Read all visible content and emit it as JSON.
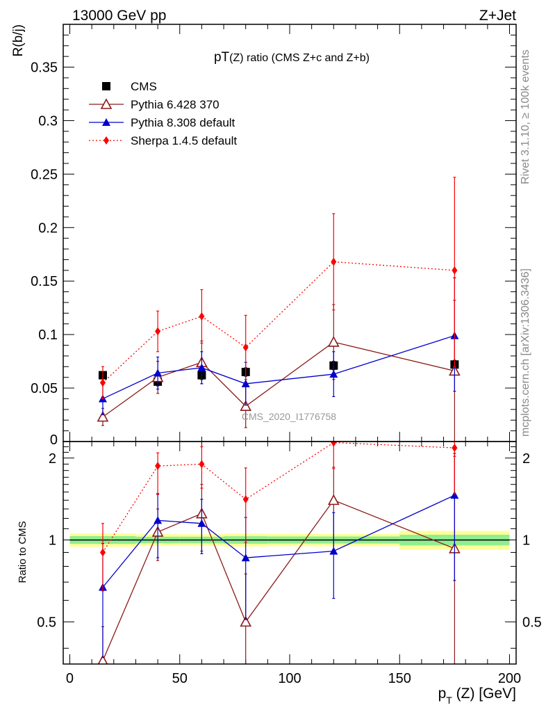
{
  "header": {
    "left_label": "13000 GeV pp",
    "right_label": "Z+Jet",
    "side_label_top": "Rivet 3.1.10, ≥ 100k events",
    "side_label_bottom": "mcplots.cern.ch [arXiv:1306.3436]",
    "watermark": "CMS_2020_I1776758"
  },
  "chart_data": [
    {
      "type": "scatter",
      "title_main": "pT",
      "title_sub": "(Z) ratio (CMS  Z+c and Z+b)",
      "ylabel": "R(b/j)",
      "xlim": [
        -3,
        203
      ],
      "ylim": [
        0,
        0.39
      ],
      "yticks": [
        0.05,
        0.1,
        0.15,
        0.2,
        0.25,
        0.3,
        0.35
      ],
      "ytick_labels": [
        "0.05",
        "0.1",
        "0.15",
        "0.2",
        "0.25",
        "0.3",
        "0.35"
      ],
      "ytick_zero_label": "0",
      "legend_position": "top-left",
      "x": [
        15,
        40,
        60,
        80,
        120,
        175
      ],
      "series": [
        {
          "name": "CMS",
          "color": "#000000",
          "marker": "square",
          "line": "none",
          "values": [
            0.062,
            0.056,
            0.062,
            0.065,
            0.071,
            0.072
          ],
          "err_lo": [
            0.003,
            0.004,
            0.004,
            0.004,
            0.004,
            0.004
          ],
          "err_hi": [
            0.003,
            0.004,
            0.004,
            0.004,
            0.004,
            0.004
          ]
        },
        {
          "name": "Pythia 6.428 370",
          "color": "#8b1a1a",
          "marker": "open-triangle",
          "line": "solid",
          "values": [
            0.023,
            0.06,
            0.074,
            0.033,
            0.093,
            0.066
          ],
          "err_lo": [
            0.008,
            0.015,
            0.02,
            0.02,
            0.035,
            0.066
          ],
          "err_hi": [
            0.008,
            0.015,
            0.02,
            0.02,
            0.035,
            0.066
          ]
        },
        {
          "name": "Pythia 8.308 default",
          "color": "#0000cc",
          "marker": "filled-triangle",
          "line": "solid",
          "values": [
            0.04,
            0.064,
            0.069,
            0.054,
            0.063,
            0.099
          ],
          "err_lo": [
            0.015,
            0.015,
            0.015,
            0.02,
            0.021,
            0.052
          ],
          "err_hi": [
            0.015,
            0.015,
            0.015,
            0.02,
            0.021,
            0.054
          ]
        },
        {
          "name": "Sherpa 1.4.5 default",
          "color": "#ff0000",
          "marker": "diamond",
          "line": "dotted",
          "values": [
            0.055,
            0.103,
            0.117,
            0.088,
            0.168,
            0.16
          ],
          "err_lo": [
            0.015,
            0.019,
            0.025,
            0.03,
            0.045,
            0.09
          ],
          "err_hi": [
            0.015,
            0.019,
            0.025,
            0.03,
            0.045,
            0.087
          ]
        }
      ]
    },
    {
      "type": "scatter",
      "ylabel": "Ratio to CMS",
      "xlabel_main": "p",
      "xlabel_sub": "T",
      "xlabel_rest": " (Z) [GeV]",
      "xlim": [
        -3,
        203
      ],
      "ylim": [
        0.35,
        2.3
      ],
      "xticks": [
        0,
        50,
        100,
        150,
        200
      ],
      "xtick_labels": [
        "0",
        "50",
        "100",
        "150",
        "200"
      ],
      "yticks": [
        0.5,
        1,
        2
      ],
      "ytick_labels": [
        "0.5",
        "1",
        "2"
      ],
      "reference_line": 1,
      "bands": [
        {
          "x0": 0,
          "x1": 30,
          "yellow": [
            0.943,
            1.057
          ],
          "green": [
            0.967,
            1.033
          ]
        },
        {
          "x0": 30,
          "x1": 50,
          "yellow": [
            0.95,
            1.05
          ],
          "green": [
            0.972,
            1.028
          ]
        },
        {
          "x0": 50,
          "x1": 70,
          "yellow": [
            0.95,
            1.05
          ],
          "green": [
            0.972,
            1.028
          ]
        },
        {
          "x0": 70,
          "x1": 90,
          "yellow": [
            0.945,
            1.055
          ],
          "green": [
            0.968,
            1.032
          ]
        },
        {
          "x0": 90,
          "x1": 150,
          "yellow": [
            0.948,
            1.052
          ],
          "green": [
            0.97,
            1.03
          ]
        },
        {
          "x0": 150,
          "x1": 200,
          "yellow": [
            0.92,
            1.08
          ],
          "green": [
            0.955,
            1.045
          ]
        }
      ],
      "x": [
        15,
        40,
        60,
        80,
        120,
        175
      ],
      "series": [
        {
          "name": "Pythia 6.428 370",
          "color": "#8b1a1a",
          "marker": "open-triangle",
          "line": "solid",
          "values": [
            0.36,
            1.07,
            1.25,
            0.5,
            1.4,
            0.93
          ],
          "err_lo": [
            0.12,
            0.23,
            0.34,
            0.25,
            0.5,
            0.6
          ],
          "err_hi": [
            0.12,
            0.23,
            0.35,
            0.25,
            0.45,
            1.1
          ]
        },
        {
          "name": "Pythia 8.308 default",
          "color": "#0000cc",
          "marker": "filled-triangle",
          "line": "solid",
          "values": [
            0.67,
            1.18,
            1.15,
            0.86,
            0.91,
            1.46
          ],
          "err_lo": [
            0.3,
            0.32,
            0.26,
            0.35,
            0.3,
            0.75
          ],
          "err_hi": [
            0.3,
            0.3,
            0.26,
            0.35,
            0.35,
            0.62
          ]
        },
        {
          "name": "Sherpa 1.4.5 default",
          "color": "#ff0000",
          "marker": "diamond",
          "line": "dotted",
          "values": [
            0.9,
            1.87,
            1.9,
            1.41,
            2.28,
            2.18
          ],
          "err_lo": [
            0.25,
            0.4,
            0.35,
            0.43,
            0.45,
            0.7
          ],
          "err_hi": [
            0.25,
            0.22,
            0.3,
            0.43,
            0.1,
            0.12
          ]
        }
      ]
    }
  ]
}
